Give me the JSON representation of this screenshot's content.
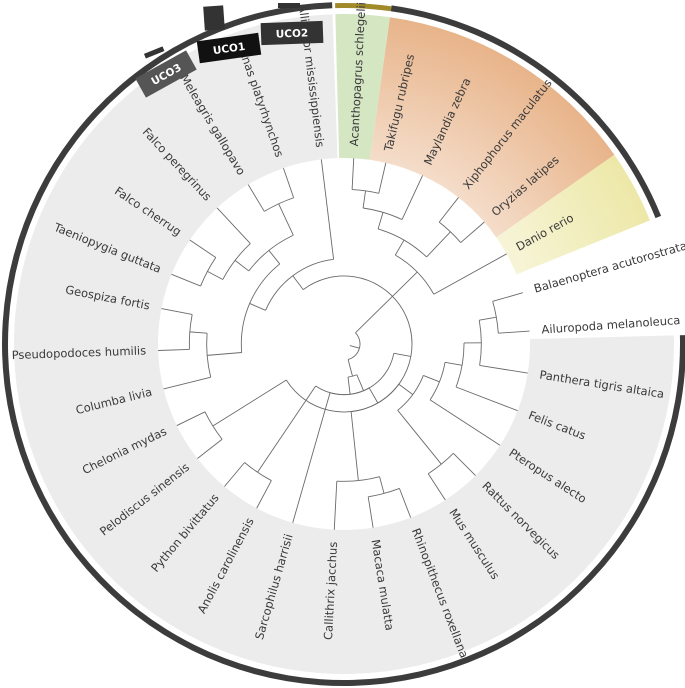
{
  "leaves": [
    {
      "label": "Alligator mississippiensis",
      "angle": 97
    },
    {
      "label": "Anas platyrhynchos",
      "angle": 109
    },
    {
      "label": "Meleagris gallopavo",
      "angle": 121
    },
    {
      "label": "Falco peregrinus",
      "angle": 133
    },
    {
      "label": "Falco cherrug",
      "angle": 146
    },
    {
      "label": "Taeniopygia guttata",
      "angle": 158
    },
    {
      "label": "Geospiza fortis",
      "angle": 169
    },
    {
      "label": "Pseudopodoces humilis",
      "angle": 182
    },
    {
      "label": "Columba livia",
      "angle": 194
    },
    {
      "label": "Chelonia mydas",
      "angle": 206
    },
    {
      "label": "Pelodiscus sinensis",
      "angle": 218
    },
    {
      "label": "Python bivittatus",
      "angle": 230
    },
    {
      "label": "Anolis carolinensis",
      "angle": 242
    },
    {
      "label": "Sarcophilus harrisii",
      "angle": 254
    },
    {
      "label": "Callithrix jacchus",
      "angle": 267
    },
    {
      "label": "Macaca mulatta",
      "angle": 279
    },
    {
      "label": "Rhinopithecus roxellana",
      "angle": 291
    },
    {
      "label": "Mus musculus",
      "angle": 303
    },
    {
      "label": "Rattus norvegicus",
      "angle": 315
    },
    {
      "label": "Pteropus alecto",
      "angle": 327
    },
    {
      "label": "Felis catus",
      "angle": 339
    },
    {
      "label": "Panthera tigris altaica",
      "angle": 351
    },
    {
      "label": "Ailuropoda melanoleuca",
      "angle": 4
    },
    {
      "label": "Balaenoptera acutorostrata",
      "angle": 16
    },
    {
      "label": "Danio rerio",
      "angle": 29
    },
    {
      "label": "Oryzias latipes",
      "angle": 41
    },
    {
      "label": "Xiphophorus maculatus",
      "angle": 52
    },
    {
      "label": "Maylandia zebra",
      "angle": 65
    },
    {
      "label": "Takifugu rubripes",
      "angle": 77
    },
    {
      "label": "Acanthopagrus schlegelii",
      "angle": 87
    }
  ],
  "sectors": [
    {
      "name": "tetrapods-band",
      "from": 92,
      "to": 361.5,
      "color": "#ececec"
    },
    {
      "name": "danio-band",
      "from": 22,
      "to": 35,
      "color": "#ede8a8"
    },
    {
      "name": "fish-orange-band",
      "from": 35,
      "to": 82,
      "color": "#e8b48a"
    },
    {
      "name": "acanthopagrus-band",
      "from": 82,
      "to": 91.5,
      "color": "#d5e6c3"
    }
  ],
  "clade_boxes": [
    {
      "label": "UCO3",
      "color": "#555555"
    },
    {
      "label": "UCO1",
      "color": "#111111"
    },
    {
      "label": "UCO2",
      "color": "#333333"
    }
  ],
  "colors": {
    "outer_ring": "#3c3c3c",
    "acanthopagrus_cap": "#a08a2a",
    "branch": "#6a6a6a"
  }
}
